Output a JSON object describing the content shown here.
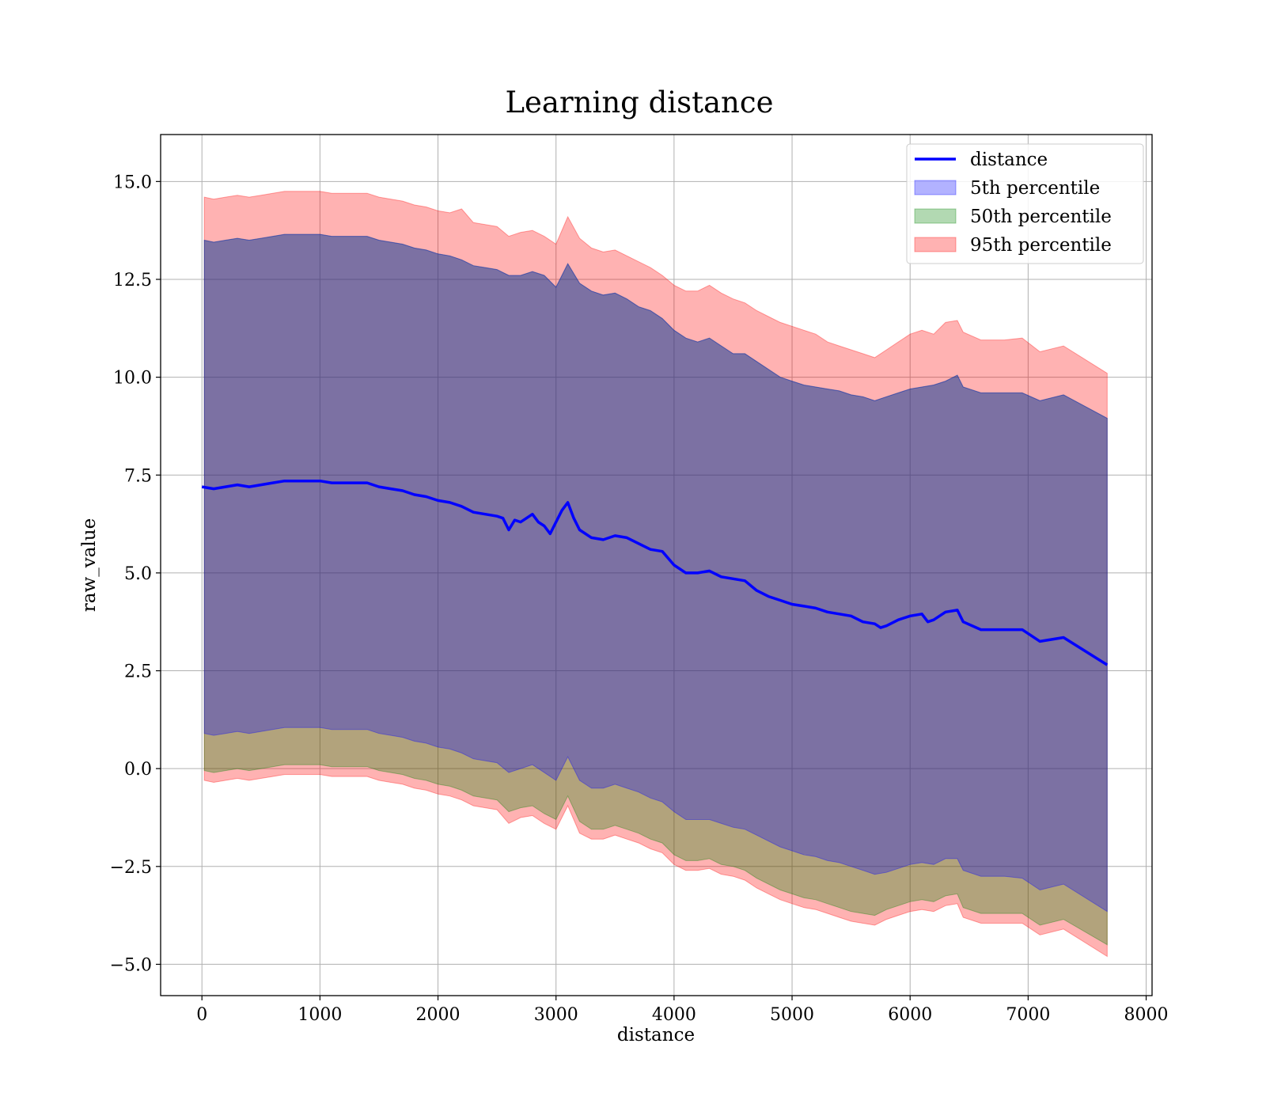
{
  "chart_data": {
    "type": "line",
    "title": "Learning distance",
    "xlabel": "distance",
    "ylabel": "raw_value",
    "xlim": [
      -350,
      8050
    ],
    "ylim": [
      -5.8,
      16.2
    ],
    "xticks": [
      0,
      1000,
      2000,
      3000,
      4000,
      5000,
      6000,
      7000,
      8000
    ],
    "xtick_labels": [
      "0",
      "1000",
      "2000",
      "3000",
      "4000",
      "5000",
      "6000",
      "7000",
      "8000"
    ],
    "yticks": [
      -5.0,
      -2.5,
      0.0,
      2.5,
      5.0,
      7.5,
      10.0,
      12.5,
      15.0
    ],
    "ytick_labels": [
      "−5.0",
      "−2.5",
      "0.0",
      "2.5",
      "5.0",
      "7.5",
      "10.0",
      "12.5",
      "15.0"
    ],
    "grid": true,
    "legend_position": "top-right",
    "colors": {
      "line": "#0000ff",
      "band_5th": "#0000ff",
      "band_50th": "#008000",
      "band_95th": "#ff0000",
      "grid": "#b0b0b0"
    },
    "series": [
      {
        "name": "distance",
        "kind": "line",
        "x": [
          0,
          100,
          200,
          300,
          400,
          500,
          600,
          700,
          800,
          900,
          1000,
          1100,
          1200,
          1300,
          1400,
          1500,
          1600,
          1700,
          1800,
          1900,
          2000,
          2100,
          2200,
          2300,
          2400,
          2500,
          2550,
          2600,
          2650,
          2700,
          2750,
          2800,
          2850,
          2900,
          2950,
          3000,
          3050,
          3100,
          3150,
          3200,
          3300,
          3400,
          3500,
          3600,
          3700,
          3800,
          3900,
          4000,
          4100,
          4200,
          4300,
          4400,
          4500,
          4600,
          4700,
          4800,
          4900,
          5000,
          5100,
          5200,
          5300,
          5400,
          5500,
          5600,
          5700,
          5750,
          5800,
          5900,
          6000,
          6100,
          6150,
          6200,
          6300,
          6400,
          6450,
          6600,
          6800,
          6950,
          7100,
          7300,
          7670
        ],
        "values": [
          7.2,
          7.15,
          7.2,
          7.25,
          7.2,
          7.25,
          7.3,
          7.35,
          7.35,
          7.35,
          7.35,
          7.3,
          7.3,
          7.3,
          7.3,
          7.2,
          7.15,
          7.1,
          7.0,
          6.95,
          6.85,
          6.8,
          6.7,
          6.55,
          6.5,
          6.45,
          6.4,
          6.1,
          6.35,
          6.3,
          6.4,
          6.5,
          6.3,
          6.2,
          6.0,
          6.3,
          6.6,
          6.8,
          6.4,
          6.1,
          5.9,
          5.85,
          5.95,
          5.9,
          5.75,
          5.6,
          5.55,
          5.2,
          5.0,
          5.0,
          5.05,
          4.9,
          4.85,
          4.8,
          4.55,
          4.4,
          4.3,
          4.2,
          4.15,
          4.1,
          4.0,
          3.95,
          3.9,
          3.75,
          3.7,
          3.6,
          3.65,
          3.8,
          3.9,
          3.95,
          3.75,
          3.8,
          4.0,
          4.05,
          3.75,
          3.55,
          3.55,
          3.55,
          3.25,
          3.35,
          2.65
        ]
      },
      {
        "name": "5th percentile",
        "kind": "band",
        "x": [
          20,
          100,
          200,
          300,
          400,
          500,
          600,
          700,
          800,
          900,
          1000,
          1100,
          1200,
          1300,
          1400,
          1500,
          1600,
          1700,
          1800,
          1900,
          2000,
          2100,
          2200,
          2300,
          2400,
          2500,
          2600,
          2700,
          2800,
          2900,
          3000,
          3100,
          3200,
          3300,
          3400,
          3500,
          3600,
          3700,
          3800,
          3900,
          4000,
          4100,
          4200,
          4300,
          4400,
          4500,
          4600,
          4700,
          4800,
          4900,
          5000,
          5100,
          5200,
          5300,
          5400,
          5500,
          5600,
          5700,
          5800,
          5900,
          6000,
          6100,
          6200,
          6300,
          6400,
          6450,
          6600,
          6800,
          6950,
          7100,
          7300,
          7670
        ],
        "lower": [
          0.9,
          0.85,
          0.9,
          0.95,
          0.9,
          0.95,
          1.0,
          1.05,
          1.05,
          1.05,
          1.05,
          1.0,
          1.0,
          1.0,
          1.0,
          0.9,
          0.85,
          0.8,
          0.7,
          0.65,
          0.55,
          0.5,
          0.4,
          0.25,
          0.2,
          0.15,
          -0.1,
          0.0,
          0.1,
          -0.1,
          -0.3,
          0.3,
          -0.3,
          -0.5,
          -0.5,
          -0.4,
          -0.5,
          -0.6,
          -0.75,
          -0.85,
          -1.1,
          -1.3,
          -1.3,
          -1.3,
          -1.4,
          -1.5,
          -1.55,
          -1.7,
          -1.85,
          -2.0,
          -2.1,
          -2.2,
          -2.25,
          -2.35,
          -2.4,
          -2.5,
          -2.6,
          -2.7,
          -2.65,
          -2.55,
          -2.45,
          -2.4,
          -2.45,
          -2.3,
          -2.3,
          -2.6,
          -2.75,
          -2.75,
          -2.8,
          -3.1,
          -2.95,
          -3.65
        ],
        "upper": [
          13.5,
          13.45,
          13.5,
          13.55,
          13.5,
          13.55,
          13.6,
          13.65,
          13.65,
          13.65,
          13.65,
          13.6,
          13.6,
          13.6,
          13.6,
          13.5,
          13.45,
          13.4,
          13.3,
          13.25,
          13.15,
          13.1,
          13.0,
          12.85,
          12.8,
          12.75,
          12.6,
          12.6,
          12.7,
          12.6,
          12.3,
          12.9,
          12.4,
          12.2,
          12.1,
          12.15,
          12.0,
          11.8,
          11.7,
          11.5,
          11.2,
          11.0,
          10.9,
          11.0,
          10.8,
          10.6,
          10.6,
          10.4,
          10.2,
          10.0,
          9.9,
          9.8,
          9.75,
          9.7,
          9.65,
          9.55,
          9.5,
          9.4,
          9.5,
          9.6,
          9.7,
          9.75,
          9.8,
          9.9,
          10.05,
          9.75,
          9.6,
          9.6,
          9.6,
          9.4,
          9.55,
          8.95
        ]
      },
      {
        "name": "50th percentile",
        "kind": "band",
        "x": [
          20,
          100,
          200,
          300,
          400,
          500,
          600,
          700,
          800,
          900,
          1000,
          1100,
          1200,
          1300,
          1400,
          1500,
          1600,
          1700,
          1800,
          1900,
          2000,
          2100,
          2200,
          2300,
          2400,
          2500,
          2600,
          2700,
          2800,
          2900,
          3000,
          3100,
          3200,
          3300,
          3400,
          3500,
          3600,
          3700,
          3800,
          3900,
          4000,
          4100,
          4200,
          4300,
          4400,
          4500,
          4600,
          4700,
          4800,
          4900,
          5000,
          5100,
          5200,
          5300,
          5400,
          5500,
          5600,
          5700,
          5800,
          5900,
          6000,
          6100,
          6200,
          6300,
          6400,
          6450,
          6600,
          6800,
          6950,
          7100,
          7300,
          7670
        ],
        "lower": [
          -0.05,
          -0.1,
          -0.05,
          0.0,
          -0.05,
          0.0,
          0.05,
          0.1,
          0.1,
          0.1,
          0.1,
          0.05,
          0.05,
          0.05,
          0.05,
          -0.05,
          -0.1,
          -0.15,
          -0.25,
          -0.3,
          -0.4,
          -0.45,
          -0.55,
          -0.7,
          -0.75,
          -0.8,
          -1.1,
          -1.0,
          -0.95,
          -1.15,
          -1.3,
          -0.7,
          -1.35,
          -1.55,
          -1.55,
          -1.45,
          -1.55,
          -1.65,
          -1.8,
          -1.9,
          -2.2,
          -2.35,
          -2.35,
          -2.3,
          -2.45,
          -2.5,
          -2.6,
          -2.8,
          -2.95,
          -3.1,
          -3.2,
          -3.3,
          -3.35,
          -3.45,
          -3.55,
          -3.65,
          -3.7,
          -3.75,
          -3.6,
          -3.5,
          -3.4,
          -3.35,
          -3.4,
          -3.25,
          -3.2,
          -3.55,
          -3.7,
          -3.7,
          -3.7,
          -4.0,
          -3.85,
          -4.5
        ]
      },
      {
        "name": "95th percentile",
        "kind": "band",
        "x": [
          20,
          100,
          200,
          300,
          400,
          500,
          600,
          700,
          800,
          900,
          1000,
          1100,
          1200,
          1300,
          1400,
          1500,
          1600,
          1700,
          1800,
          1900,
          2000,
          2100,
          2200,
          2300,
          2400,
          2500,
          2600,
          2700,
          2800,
          2900,
          3000,
          3100,
          3200,
          3300,
          3400,
          3500,
          3600,
          3700,
          3800,
          3900,
          4000,
          4100,
          4200,
          4300,
          4400,
          4500,
          4600,
          4700,
          4800,
          4900,
          5000,
          5100,
          5200,
          5300,
          5400,
          5500,
          5600,
          5700,
          5800,
          5900,
          6000,
          6100,
          6200,
          6300,
          6400,
          6450,
          6600,
          6800,
          6950,
          7100,
          7300,
          7670
        ],
        "lower": [
          -0.3,
          -0.35,
          -0.3,
          -0.25,
          -0.3,
          -0.25,
          -0.2,
          -0.15,
          -0.15,
          -0.15,
          -0.15,
          -0.2,
          -0.2,
          -0.2,
          -0.2,
          -0.3,
          -0.35,
          -0.4,
          -0.5,
          -0.55,
          -0.65,
          -0.7,
          -0.8,
          -0.95,
          -1.0,
          -1.05,
          -1.4,
          -1.25,
          -1.2,
          -1.4,
          -1.55,
          -0.95,
          -1.65,
          -1.8,
          -1.8,
          -1.7,
          -1.8,
          -1.9,
          -2.05,
          -2.15,
          -2.45,
          -2.6,
          -2.6,
          -2.55,
          -2.7,
          -2.75,
          -2.85,
          -3.05,
          -3.2,
          -3.35,
          -3.45,
          -3.55,
          -3.6,
          -3.7,
          -3.8,
          -3.9,
          -3.95,
          -4.0,
          -3.85,
          -3.75,
          -3.65,
          -3.6,
          -3.65,
          -3.5,
          -3.45,
          -3.8,
          -3.95,
          -3.95,
          -3.95,
          -4.25,
          -4.1,
          -4.8
        ],
        "upper": [
          14.6,
          14.55,
          14.6,
          14.65,
          14.6,
          14.65,
          14.7,
          14.75,
          14.75,
          14.75,
          14.75,
          14.7,
          14.7,
          14.7,
          14.7,
          14.6,
          14.55,
          14.5,
          14.4,
          14.35,
          14.25,
          14.2,
          14.3,
          13.95,
          13.9,
          13.85,
          13.6,
          13.7,
          13.75,
          13.6,
          13.4,
          14.1,
          13.55,
          13.3,
          13.2,
          13.25,
          13.1,
          12.95,
          12.8,
          12.6,
          12.35,
          12.2,
          12.2,
          12.35,
          12.15,
          12.0,
          11.9,
          11.7,
          11.55,
          11.4,
          11.3,
          11.2,
          11.1,
          10.9,
          10.8,
          10.7,
          10.6,
          10.5,
          10.7,
          10.9,
          11.1,
          11.2,
          11.1,
          11.4,
          11.45,
          11.15,
          10.95,
          10.95,
          11.0,
          10.65,
          10.8,
          10.1
        ]
      }
    ],
    "legend": [
      {
        "label": "distance",
        "swatch": "line",
        "color": "#0000ff"
      },
      {
        "label": "5th percentile",
        "swatch": "patch",
        "color": "#0000ff"
      },
      {
        "label": "50th percentile",
        "swatch": "patch",
        "color": "#008000"
      },
      {
        "label": "95th percentile",
        "swatch": "patch",
        "color": "#ff0000"
      }
    ]
  }
}
